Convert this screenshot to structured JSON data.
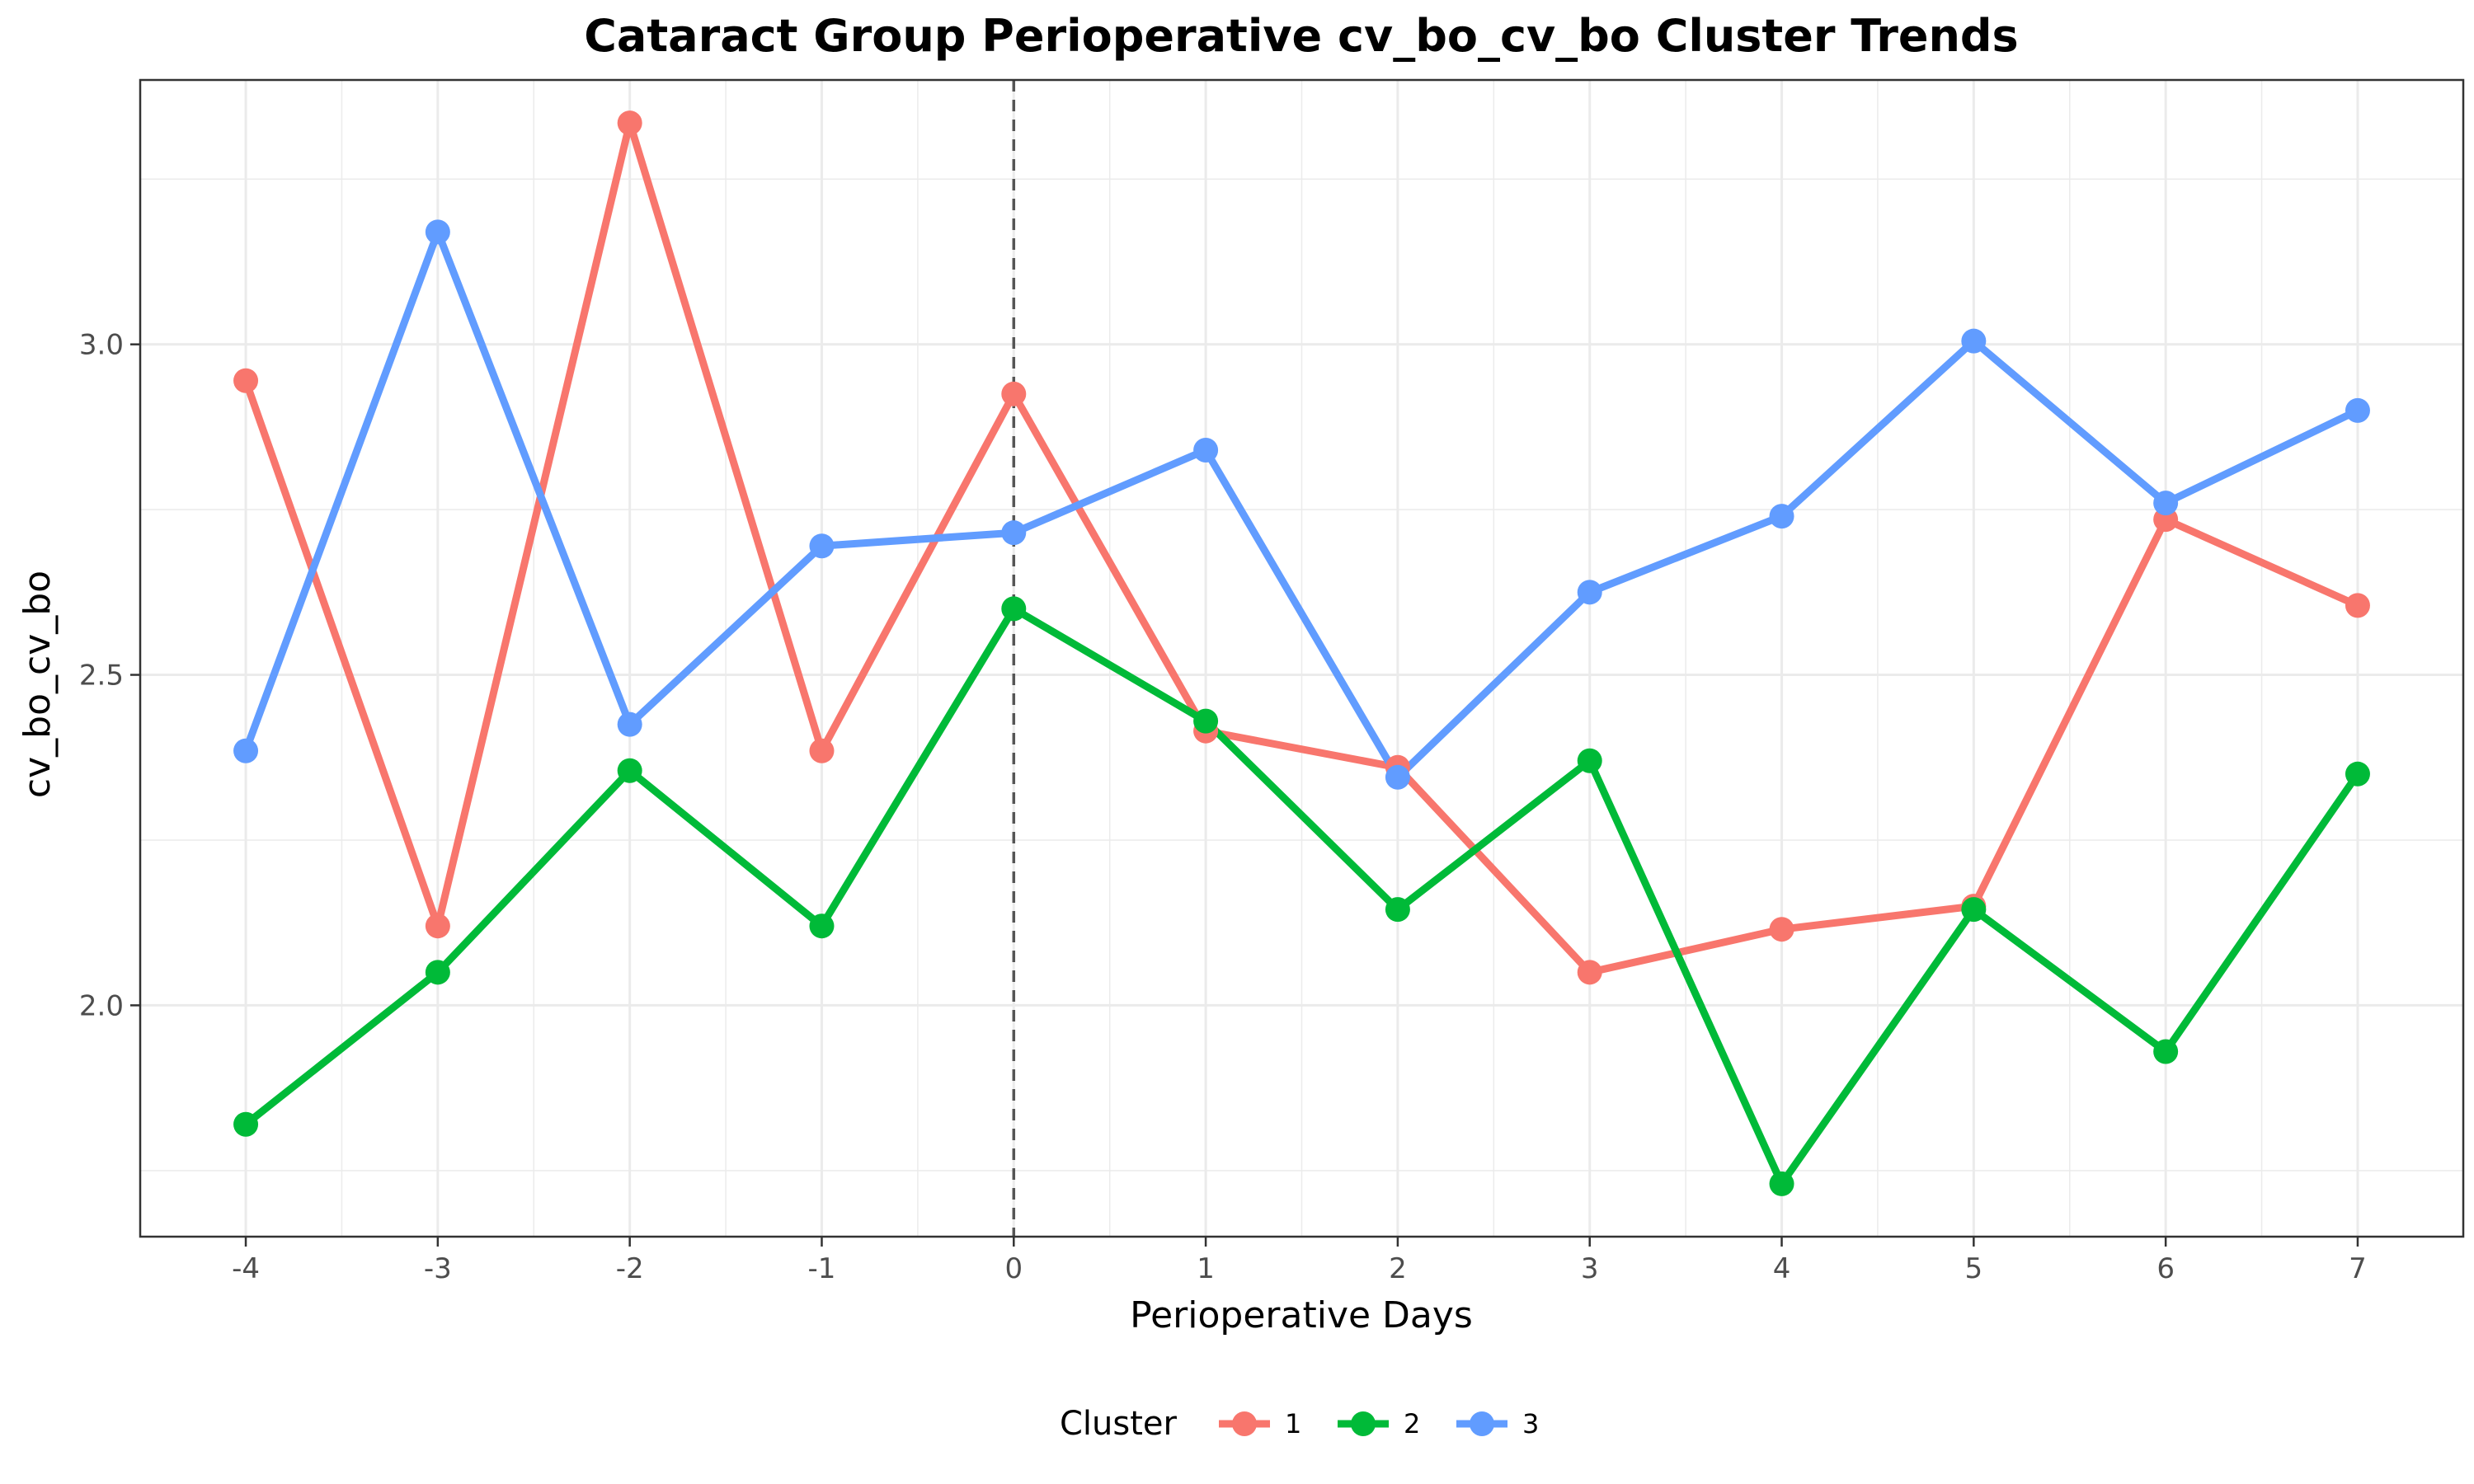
{
  "chart_data": {
    "type": "line",
    "title": "Cataract Group Perioperative cv_bo_cv_bo Cluster Trends",
    "xlabel": "Perioperative Days",
    "ylabel": "cv_bo_cv_bo",
    "x": [
      -4,
      -3,
      -2,
      -1,
      0,
      1,
      2,
      3,
      4,
      5,
      6,
      7
    ],
    "x_tick_labels": [
      "-4",
      "-3",
      "-2",
      "-1",
      "0",
      "1",
      "2",
      "3",
      "4",
      "5",
      "6",
      "7"
    ],
    "xlim": [
      -4.55,
      7.55
    ],
    "ylim": [
      1.65,
      3.4
    ],
    "y_ticks": [
      2.0,
      2.5,
      3.0
    ],
    "y_tick_labels": [
      "2.0",
      "2.5",
      "3.0"
    ],
    "reference_line": {
      "x": 0,
      "style": "dashed"
    },
    "grid": true,
    "legend": {
      "title": "Cluster",
      "position": "bottom"
    },
    "series": [
      {
        "name": "1",
        "color": "#F8766D",
        "values": [
          2.945,
          2.12,
          3.335,
          2.385,
          2.925,
          2.415,
          2.36,
          2.05,
          2.115,
          2.15,
          2.735,
          2.605
        ]
      },
      {
        "name": "2",
        "color": "#00BA38",
        "values": [
          1.82,
          2.05,
          2.355,
          2.12,
          2.6,
          2.43,
          2.145,
          2.37,
          1.73,
          2.145,
          1.93,
          2.35
        ]
      },
      {
        "name": "3",
        "color": "#619CFF",
        "values": [
          2.385,
          3.17,
          2.425,
          2.695,
          2.715,
          2.84,
          2.345,
          2.625,
          2.74,
          3.005,
          2.76,
          2.9
        ]
      }
    ]
  }
}
